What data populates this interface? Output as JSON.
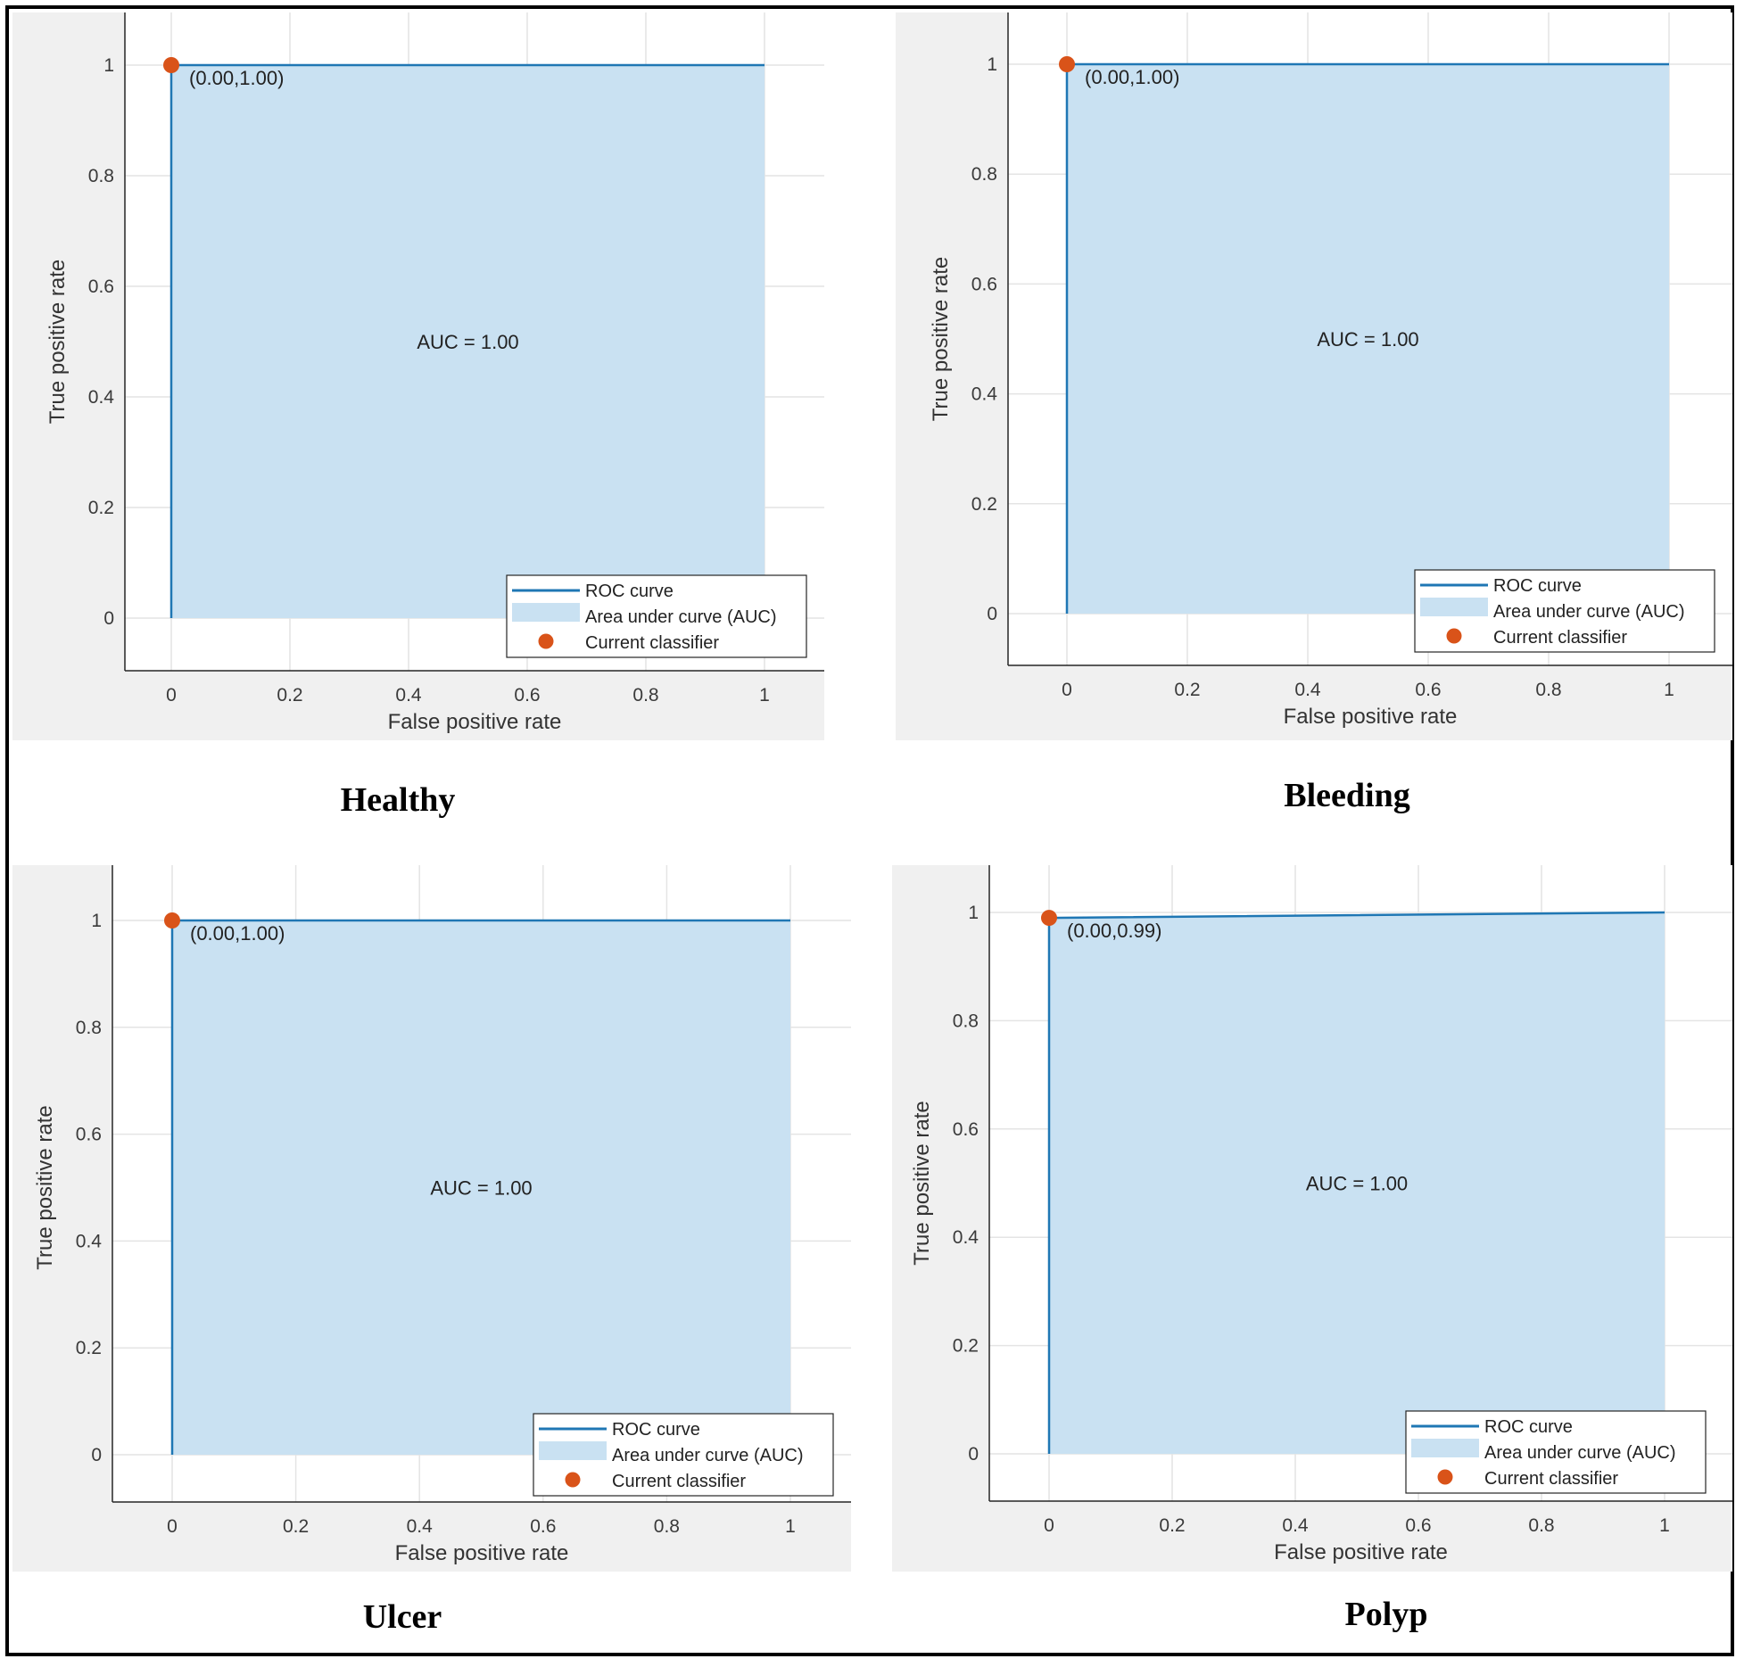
{
  "figure": {
    "border_color": "#000000"
  },
  "colors": {
    "curve": "#1f77b4",
    "area": "#c9e1f2",
    "point": "#d95319",
    "grid": "#e4e4e4",
    "axes_bg": "#f0f0f0"
  },
  "chart_data": [
    {
      "type": "area",
      "caption": "Healthy",
      "xlabel": "False positive rate",
      "ylabel": "True positive rate",
      "xlim": [
        -0.1,
        1.1
      ],
      "ylim": [
        -0.1,
        1.1
      ],
      "xticks": [
        "0",
        "0.2",
        "0.4",
        "0.6",
        "0.8",
        "1"
      ],
      "yticks": [
        "0",
        "0.2",
        "0.4",
        "0.6",
        "0.8",
        "1"
      ],
      "grid": true,
      "series": [
        {
          "name": "ROC curve",
          "x": [
            0,
            0,
            1
          ],
          "y": [
            0,
            1.0,
            1.0
          ]
        }
      ],
      "auc_text": "AUC = 1.00",
      "classifier_point": {
        "x": 0.0,
        "y": 1.0,
        "label": "(0.00,1.00)"
      },
      "legend": {
        "position": "bottom-right",
        "items": [
          "ROC curve",
          "Area under curve (AUC)",
          "Current classifier"
        ]
      }
    },
    {
      "type": "area",
      "caption": "Bleeding",
      "xlabel": "False positive rate",
      "ylabel": "True positive rate",
      "xlim": [
        -0.1,
        1.1
      ],
      "ylim": [
        -0.1,
        1.1
      ],
      "xticks": [
        "0",
        "0.2",
        "0.4",
        "0.6",
        "0.8",
        "1"
      ],
      "yticks": [
        "0",
        "0.2",
        "0.4",
        "0.6",
        "0.8",
        "1"
      ],
      "grid": true,
      "series": [
        {
          "name": "ROC curve",
          "x": [
            0,
            0,
            1
          ],
          "y": [
            0,
            1.0,
            1.0
          ]
        }
      ],
      "auc_text": "AUC = 1.00",
      "classifier_point": {
        "x": 0.0,
        "y": 1.0,
        "label": "(0.00,1.00)"
      },
      "legend": {
        "position": "bottom-right",
        "items": [
          "ROC curve",
          "Area under curve (AUC)",
          "Current classifier"
        ]
      }
    },
    {
      "type": "area",
      "caption": "Ulcer",
      "xlabel": "False positive rate",
      "ylabel": "True positive rate",
      "xlim": [
        -0.1,
        1.1
      ],
      "ylim": [
        -0.1,
        1.1
      ],
      "xticks": [
        "0",
        "0.2",
        "0.4",
        "0.6",
        "0.8",
        "1"
      ],
      "yticks": [
        "0",
        "0.2",
        "0.4",
        "0.6",
        "0.8",
        "1"
      ],
      "grid": true,
      "series": [
        {
          "name": "ROC curve",
          "x": [
            0,
            0,
            1
          ],
          "y": [
            0,
            1.0,
            1.0
          ]
        }
      ],
      "auc_text": "AUC = 1.00",
      "classifier_point": {
        "x": 0.0,
        "y": 1.0,
        "label": "(0.00,1.00)"
      },
      "legend": {
        "position": "bottom-right",
        "items": [
          "ROC curve",
          "Area under curve (AUC)",
          "Current classifier"
        ]
      }
    },
    {
      "type": "area",
      "caption": "Polyp",
      "xlabel": "False positive rate",
      "ylabel": "True positive rate",
      "xlim": [
        -0.1,
        1.1
      ],
      "ylim": [
        -0.1,
        1.1
      ],
      "xticks": [
        "0",
        "0.2",
        "0.4",
        "0.6",
        "0.8",
        "1"
      ],
      "yticks": [
        "0",
        "0.2",
        "0.4",
        "0.6",
        "0.8",
        "1"
      ],
      "grid": true,
      "series": [
        {
          "name": "ROC curve",
          "x": [
            0,
            0,
            1
          ],
          "y": [
            0,
            0.99,
            1.0
          ]
        }
      ],
      "auc_text": "AUC = 1.00",
      "classifier_point": {
        "x": 0.0,
        "y": 0.99,
        "label": "(0.00,0.99)"
      },
      "legend": {
        "position": "bottom-right",
        "items": [
          "ROC curve",
          "Area under curve (AUC)",
          "Current classifier"
        ]
      }
    }
  ]
}
